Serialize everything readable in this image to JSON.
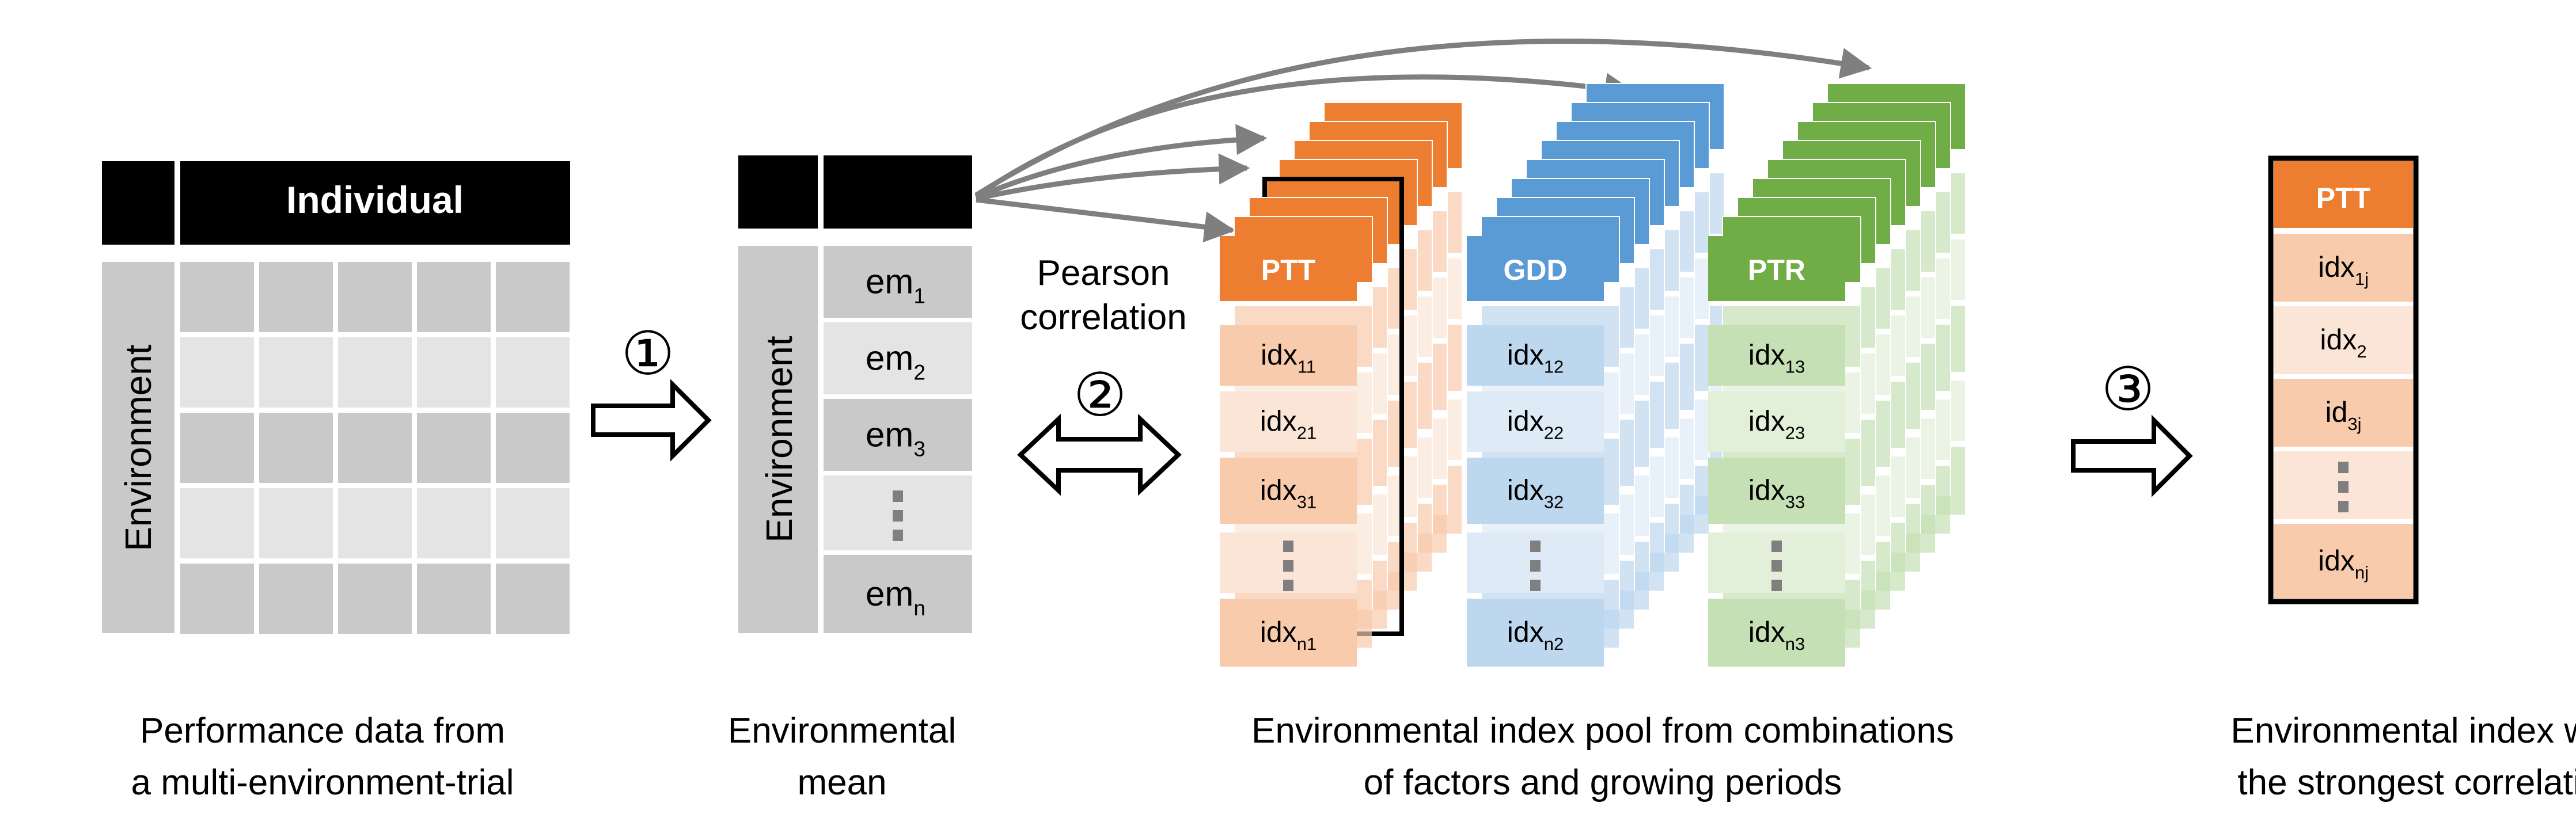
{
  "panel_performance": {
    "header": "Individual",
    "row_label": "Environment",
    "caption_lines": [
      "Performance data from",
      "a multi-environment-trial"
    ]
  },
  "panel_mean": {
    "row_label": "Environment",
    "items": [
      {
        "base": "em",
        "sub": "1"
      },
      {
        "base": "em",
        "sub": "2"
      },
      {
        "base": "em",
        "sub": "3"
      },
      {
        "base": "em",
        "sub": "n"
      }
    ],
    "caption_lines": [
      "Environmental",
      "mean"
    ]
  },
  "arrows": {
    "step1": "①",
    "step2": "②",
    "step3": "③",
    "correlation_lines": [
      "Pearson",
      "correlation"
    ]
  },
  "panel_pool": {
    "stacks": [
      {
        "header": "PTT",
        "color": "#ED7D31",
        "light": "#F8CBAD",
        "pale": "#FBE5D6",
        "items": [
          {
            "base": "idx",
            "sub": "11"
          },
          {
            "base": "idx",
            "sub": "21"
          },
          {
            "base": "idx",
            "sub": "31"
          },
          {
            "base": "idx",
            "sub": "n1"
          }
        ]
      },
      {
        "header": "GDD",
        "color": "#5B9BD5",
        "light": "#BDD7EE",
        "pale": "#DEEBF7",
        "items": [
          {
            "base": "idx",
            "sub": "12"
          },
          {
            "base": "idx",
            "sub": "22"
          },
          {
            "base": "idx",
            "sub": "32"
          },
          {
            "base": "idx",
            "sub": "n2"
          }
        ]
      },
      {
        "header": "PTR",
        "color": "#70AD47",
        "light": "#C5E0B4",
        "pale": "#E2F0D9",
        "items": [
          {
            "base": "idx",
            "sub": "13"
          },
          {
            "base": "idx",
            "sub": "23"
          },
          {
            "base": "idx",
            "sub": "33"
          },
          {
            "base": "idx",
            "sub": "n3"
          }
        ]
      }
    ],
    "caption_lines": [
      "Environmental index pool from combinations",
      "of factors and growing periods"
    ]
  },
  "panel_best": {
    "header": "PTT",
    "items": [
      {
        "base": "idx",
        "sub": "1j"
      },
      {
        "base": "idx",
        "sub": "2"
      },
      {
        "base": "id",
        "sub": "3j"
      },
      {
        "base": "idx",
        "sub": "nj"
      }
    ],
    "caption_lines": [
      "Environmental index with",
      "the strongest correlation"
    ]
  }
}
